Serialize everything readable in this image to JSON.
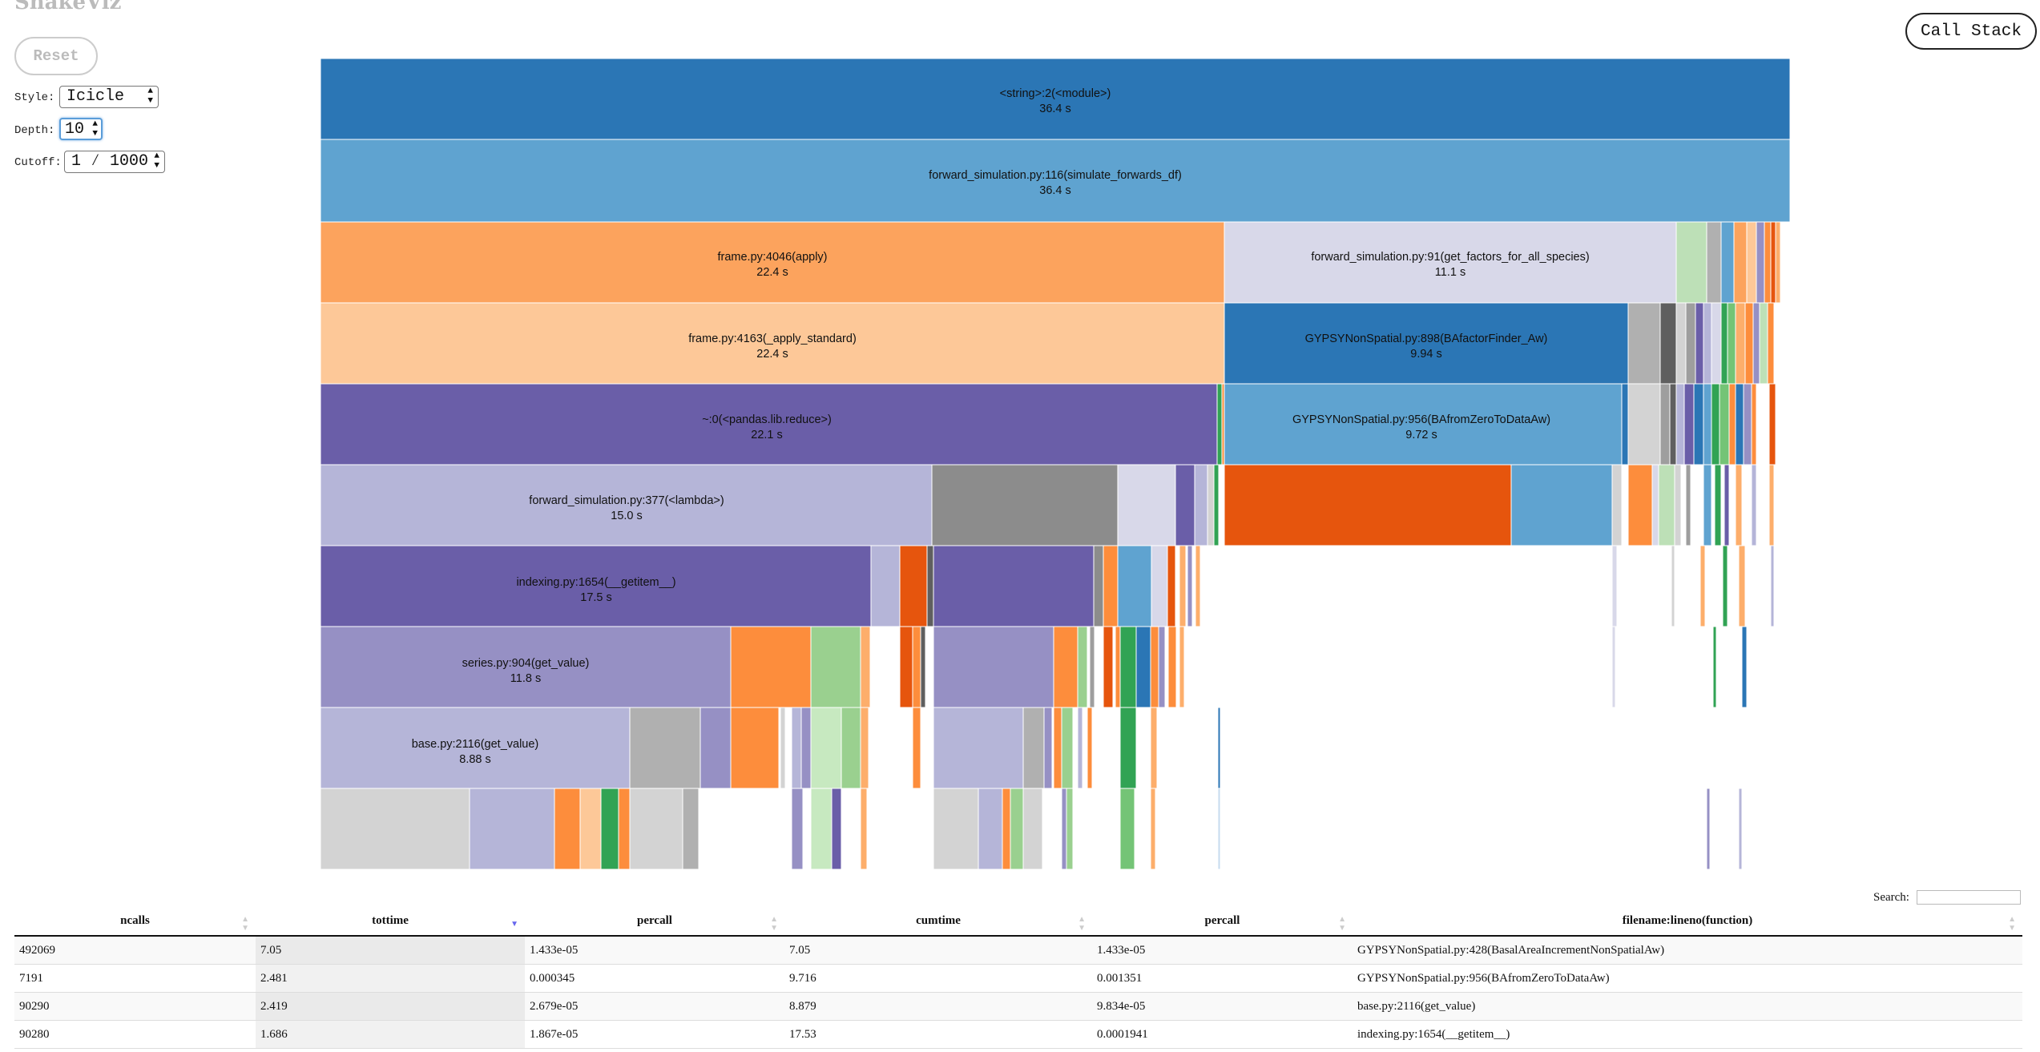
{
  "app": {
    "title": "SnakeViz"
  },
  "controls": {
    "reset_label": "Reset",
    "call_stack_label": "Call Stack",
    "style_label": "Style:",
    "style_value": "Icicle",
    "depth_label": "Depth:",
    "depth_value": "10",
    "cutoff_label": "Cutoff:",
    "cutoff_value": "1 ⁄ 1000"
  },
  "icicle": {
    "labeled_blocks": [
      {
        "name": "<string>:2(<module>)",
        "time": "36.4 s",
        "color": "#2b76b5"
      },
      {
        "name": "forward_simulation.py:116(simulate_forwards_df)",
        "time": "36.4 s",
        "color": "#5fa3d0"
      },
      {
        "name": "frame.py:4046(apply)",
        "time": "22.4 s",
        "color": "#fca35d"
      },
      {
        "name": "forward_simulation.py:91(get_factors_for_all_species)",
        "time": "11.1 s",
        "color": "#d8d8e9"
      },
      {
        "name": "frame.py:4163(_apply_standard)",
        "time": "22.4 s",
        "color": "#fdc898"
      },
      {
        "name": "GYPSYNonSpatial.py:898(BAfactorFinder_Aw)",
        "time": "9.94 s",
        "color": "#2b76b5"
      },
      {
        "name": "~:0(<pandas.lib.reduce>)",
        "time": "22.1 s",
        "color": "#6a5ea8"
      },
      {
        "name": "GYPSYNonSpatial.py:956(BAfromZeroToDataAw)",
        "time": "9.72 s",
        "color": "#5fa3d0"
      },
      {
        "name": "forward_simulation.py:377(<lambda>)",
        "time": "15.0 s",
        "color": "#b5b5d8"
      },
      {
        "name": "indexing.py:1654(__getitem__)",
        "time": "17.5 s",
        "color": "#6a5ea8"
      },
      {
        "name": "series.py:904(get_value)",
        "time": "11.8 s",
        "color": "#9690c4"
      },
      {
        "name": "base.py:2116(get_value)",
        "time": "8.88 s",
        "color": "#b5b5d8"
      }
    ]
  },
  "search": {
    "label": "Search:",
    "value": ""
  },
  "table": {
    "columns": [
      "ncalls",
      "tottime",
      "percall",
      "cumtime",
      "percall",
      "filename:lineno(function)"
    ],
    "sorted_column": "tottime",
    "rows": [
      [
        "492069",
        "7.05",
        "1.433e-05",
        "7.05",
        "1.433e-05",
        "GYPSYNonSpatial.py:428(BasalAreaIncrementNonSpatialAw)"
      ],
      [
        "7191",
        "2.481",
        "0.000345",
        "9.716",
        "0.001351",
        "GYPSYNonSpatial.py:956(BAfromZeroToDataAw)"
      ],
      [
        "90290",
        "2.419",
        "2.679e-05",
        "8.879",
        "9.834e-05",
        "base.py:2116(get_value)"
      ],
      [
        "90280",
        "1.686",
        "1.867e-05",
        "17.53",
        "0.0001941",
        "indexing.py:1654(__getitem__)"
      ]
    ]
  }
}
